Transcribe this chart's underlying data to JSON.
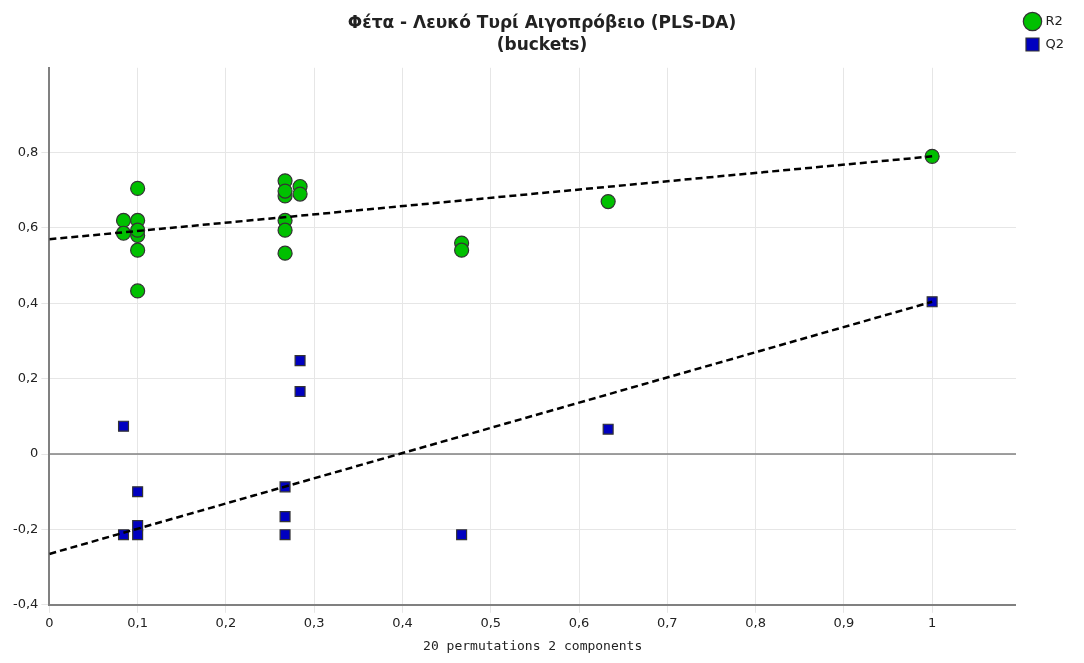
{
  "chart_data": {
    "type": "scatter",
    "title": "Φέτα - Λευκό Τυρί Αιγοπρόβειο (PLS-DA)",
    "subtitle": "(buckets)",
    "xlabel": "20 permutations 2 components",
    "xlim": [
      0,
      1.095
    ],
    "ylim": [
      -0.4,
      1.025
    ],
    "xticks": [
      0,
      {
        "value": 0.1,
        "label": "0,1"
      },
      {
        "value": 0.2,
        "label": "0,2"
      },
      {
        "value": 0.3,
        "label": "0,3"
      },
      {
        "value": 0.4,
        "label": "0,4"
      },
      {
        "value": 0.5,
        "label": "0,5"
      },
      {
        "value": 0.6,
        "label": "0,6"
      },
      {
        "value": 0.7,
        "label": "0,7"
      },
      {
        "value": 0.8,
        "label": "0,8"
      },
      {
        "value": 0.9,
        "label": "0,9"
      },
      1
    ],
    "yticks": [
      {
        "value": -0.4,
        "label": "-0,4"
      },
      {
        "value": -0.2,
        "label": "-0,2"
      },
      0,
      {
        "value": 0.2,
        "label": "0,2"
      },
      {
        "value": 0.4,
        "label": "0,4"
      },
      {
        "value": 0.6,
        "label": "0,6"
      },
      {
        "value": 0.8,
        "label": "0,8"
      }
    ],
    "grid": true,
    "legend": "top right",
    "ref_lines": [
      {
        "axis": "y",
        "value": 0,
        "color": "#808080"
      }
    ],
    "series": [
      {
        "type": "line",
        "color": "#000000",
        "line_style": "dashed",
        "marker": "none",
        "x": [
          0,
          1
        ],
        "values": [
          0.57,
          0.79
        ]
      },
      {
        "type": "line",
        "color": "#000000",
        "line_style": "dashed",
        "marker": "none",
        "x": [
          0,
          1
        ],
        "values": [
          -0.265,
          0.404
        ]
      },
      {
        "name": "R2",
        "color": "#00c000",
        "marker": "circle",
        "x": [
          0.084,
          0.084,
          0.1,
          0.1,
          0.1,
          0.1,
          0.1,
          0.1,
          0.267,
          0.267,
          0.267,
          0.267,
          0.267,
          0.267,
          0.284,
          0.284,
          0.467,
          0.467,
          0.633,
          1
        ],
        "values": [
          0.62,
          0.586,
          0.705,
          0.62,
          0.58,
          0.594,
          0.541,
          0.433,
          0.725,
          0.685,
          0.698,
          0.62,
          0.594,
          0.533,
          0.71,
          0.69,
          0.56,
          0.541,
          0.67,
          0.79
        ]
      },
      {
        "name": "Q2",
        "color": "#0000c0",
        "marker": "square",
        "x": [
          0.084,
          0.084,
          0.1,
          0.1,
          0.1,
          0.267,
          0.267,
          0.267,
          0.284,
          0.284,
          0.467,
          0.633,
          1
        ],
        "values": [
          0.074,
          -0.214,
          -0.1,
          -0.19,
          -0.214,
          -0.087,
          -0.166,
          -0.214,
          0.248,
          0.166,
          -0.214,
          0.066,
          0.404
        ]
      }
    ]
  }
}
